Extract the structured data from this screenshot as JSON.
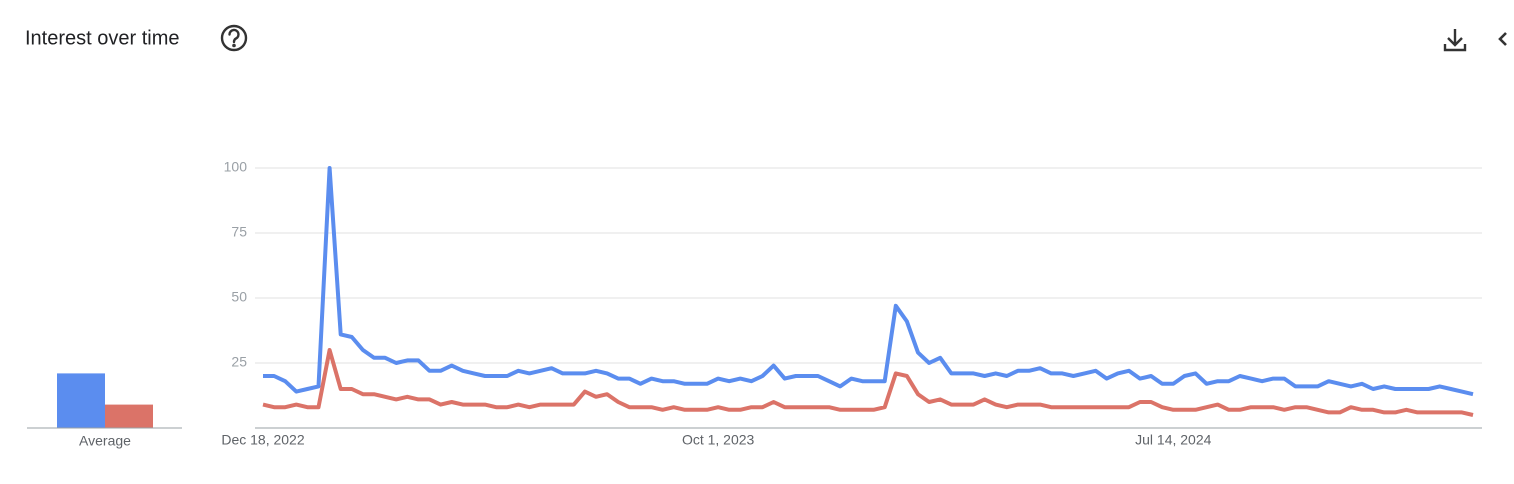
{
  "chart_data": {
    "type": "line",
    "title": "Interest over time",
    "categories": [
      "Dec 18, 2022",
      null,
      null,
      null,
      null,
      null,
      null,
      null,
      null,
      null,
      null,
      null,
      null,
      null,
      null,
      null,
      null,
      null,
      null,
      null,
      null,
      null,
      null,
      null,
      null,
      null,
      null,
      null,
      null,
      null,
      null,
      null,
      null,
      null,
      null,
      null,
      null,
      null,
      null,
      null,
      null,
      "Oct 1, 2023",
      null,
      null,
      null,
      null,
      null,
      null,
      null,
      null,
      null,
      null,
      null,
      null,
      null,
      null,
      null,
      null,
      null,
      null,
      null,
      null,
      null,
      null,
      null,
      null,
      null,
      null,
      null,
      null,
      null,
      null,
      null,
      null,
      null,
      null,
      null,
      null,
      null,
      null,
      null,
      null,
      "Jul 14, 2024",
      null,
      null,
      null,
      null,
      null,
      null,
      null,
      null,
      null,
      null,
      null,
      null,
      null,
      null,
      null,
      null,
      null,
      null,
      null,
      null,
      null,
      null,
      null,
      null,
      null,
      null,
      null
    ],
    "series": [
      {
        "color": "#5b8def",
        "values": [
          20,
          20,
          18,
          14,
          15,
          16,
          100,
          36,
          35,
          30,
          27,
          27,
          25,
          26,
          26,
          22,
          22,
          24,
          22,
          21,
          20,
          20,
          20,
          22,
          21,
          22,
          23,
          21,
          21,
          21,
          22,
          21,
          19,
          19,
          17,
          19,
          18,
          18,
          17,
          17,
          17,
          19,
          18,
          19,
          18,
          20,
          24,
          19,
          20,
          20,
          20,
          18,
          16,
          19,
          18,
          18,
          18,
          47,
          41,
          29,
          25,
          27,
          21,
          21,
          21,
          20,
          21,
          20,
          22,
          22,
          23,
          21,
          21,
          20,
          21,
          22,
          19,
          21,
          22,
          19,
          20,
          17,
          17,
          20,
          21,
          17,
          18,
          18,
          20,
          19,
          18,
          19,
          19,
          16,
          16,
          16,
          18,
          17,
          16,
          17,
          15,
          16,
          15,
          15,
          15,
          15,
          16,
          15,
          14,
          13
        ]
      },
      {
        "color": "#db7368",
        "values": [
          9,
          8,
          8,
          9,
          8,
          8,
          30,
          15,
          15,
          13,
          13,
          12,
          11,
          12,
          11,
          11,
          9,
          10,
          9,
          9,
          9,
          8,
          8,
          9,
          8,
          9,
          9,
          9,
          9,
          14,
          12,
          13,
          10,
          8,
          8,
          8,
          7,
          8,
          7,
          7,
          7,
          8,
          7,
          7,
          8,
          8,
          10,
          8,
          8,
          8,
          8,
          8,
          7,
          7,
          7,
          7,
          8,
          21,
          20,
          13,
          10,
          11,
          9,
          9,
          9,
          11,
          9,
          8,
          9,
          9,
          9,
          8,
          8,
          8,
          8,
          8,
          8,
          8,
          8,
          10,
          10,
          8,
          7,
          7,
          7,
          8,
          9,
          7,
          7,
          8,
          8,
          8,
          7,
          8,
          8,
          7,
          6,
          6,
          8,
          7,
          7,
          6,
          6,
          7,
          6,
          6,
          6,
          6,
          6,
          5
        ]
      }
    ],
    "averages": {
      "label": "Average",
      "values": [
        21,
        9
      ]
    },
    "ylim": [
      0,
      100
    ],
    "yticks": [
      25,
      50,
      75,
      100
    ],
    "grid": true
  }
}
